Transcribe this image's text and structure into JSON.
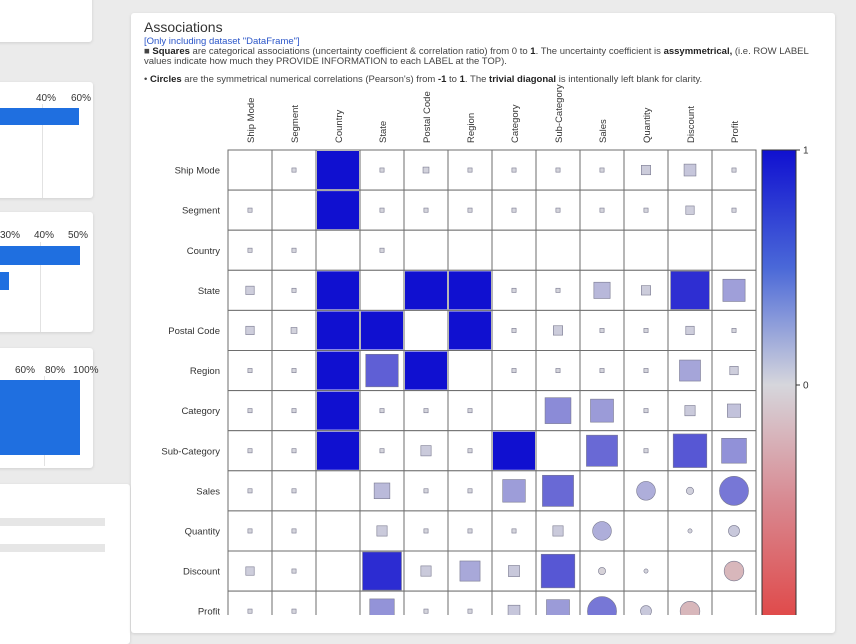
{
  "left_panels": {
    "top": {
      "ticks": [
        "40%",
        "60%"
      ]
    },
    "middle": {
      "ticks": [
        "30%",
        "40%",
        "50%"
      ]
    },
    "bottom": {
      "ticks": [
        "60%",
        "80%",
        "100%"
      ]
    }
  },
  "associations": {
    "title": "Associations",
    "desc_line1": "[Only including dataset \"DataFrame\"]",
    "desc_line2a": "■ ",
    "desc_line2b": "Squares",
    "desc_line2c": " are categorical associations (uncertainty coefficient & correlation ratio) from 0 to ",
    "desc_line2d": "1",
    "desc_line2e": ". The uncertainty coefficient is ",
    "desc_line2f": "assymmetrical,",
    "desc_line2g": " (i.e. ROW LABEL",
    "desc_line3": "values indicate how much they PROVIDE INFORMATION to each LABEL at the TOP).",
    "desc_line4a": "• ",
    "desc_line4b": "Circles",
    "desc_line4c": " are the symmetrical numerical correlations (Pearson's) from ",
    "desc_line4d": "-1",
    "desc_line4e": " to ",
    "desc_line4f": "1",
    "desc_line4g": ". The ",
    "desc_line4h": "trivial diagonal",
    "desc_line4i": " is intentionally left blank for clarity."
  },
  "colors": {
    "high": "#1010d0",
    "mid": "#d6d6dc",
    "low": "#e04848"
  },
  "chart_data": {
    "type": "heatmap",
    "labels": [
      "Ship Mode",
      "Segment",
      "Country",
      "State",
      "Postal Code",
      "Region",
      "Category",
      "Sub-Category",
      "Sales",
      "Quantity",
      "Discount",
      "Profit"
    ],
    "colorbar_ticks": [
      "1",
      "0"
    ],
    "colorbar_range": [
      -1,
      1
    ],
    "values": [
      [
        null,
        0.01,
        1.0,
        0.01,
        0.02,
        0.01,
        0.01,
        0.01,
        0.01,
        0.05,
        0.08,
        0.01
      ],
      [
        0.01,
        null,
        1.0,
        0.01,
        0.01,
        0.01,
        0.01,
        0.01,
        0.01,
        0.01,
        0.04,
        0.01
      ],
      [
        0.01,
        0.01,
        null,
        0.01,
        null,
        null,
        null,
        null,
        null,
        null,
        null,
        null
      ],
      [
        0.04,
        0.01,
        1.0,
        null,
        1.0,
        1.0,
        0.01,
        0.01,
        0.15,
        0.05,
        0.85,
        0.28
      ],
      [
        0.04,
        0.02,
        1.0,
        1.0,
        null,
        1.0,
        0.01,
        0.05,
        0.01,
        0.01,
        0.04,
        0.01
      ],
      [
        0.01,
        0.01,
        1.0,
        0.6,
        1.0,
        null,
        0.01,
        0.01,
        0.01,
        0.01,
        0.25,
        0.04
      ],
      [
        0.01,
        0.01,
        1.0,
        0.01,
        0.01,
        0.01,
        null,
        0.38,
        0.3,
        0.01,
        0.06,
        0.1
      ],
      [
        0.01,
        0.01,
        1.0,
        0.01,
        0.06,
        0.01,
        1.0,
        null,
        0.55,
        0.01,
        0.64,
        0.35
      ],
      [
        0.01,
        0.01,
        null,
        0.14,
        0.01,
        0.01,
        0.29,
        0.55,
        null,
        0.2,
        0.03,
        0.48
      ],
      [
        0.01,
        0.01,
        null,
        0.06,
        0.01,
        0.01,
        0.01,
        0.06,
        0.2,
        null,
        0.01,
        0.07
      ],
      [
        0.04,
        0.01,
        null,
        0.86,
        0.06,
        0.23,
        0.07,
        0.64,
        -0.03,
        0.01,
        null,
        -0.22
      ],
      [
        0.01,
        0.01,
        null,
        0.34,
        0.01,
        0.01,
        0.08,
        0.3,
        0.48,
        0.07,
        -0.22,
        null
      ]
    ],
    "numeric_labels": [
      "Sales",
      "Quantity",
      "Discount",
      "Profit"
    ]
  }
}
